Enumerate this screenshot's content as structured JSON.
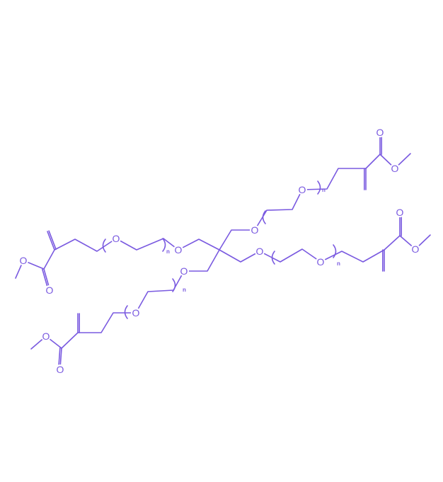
{
  "labels": {
    "oxygen": "O",
    "repeat": "n"
  },
  "colors": {
    "bond": "#7a5ae0"
  },
  "arms": [
    "left-upper-arm",
    "left-lower-arm",
    "right-upper-arm",
    "right-lower-arm"
  ]
}
